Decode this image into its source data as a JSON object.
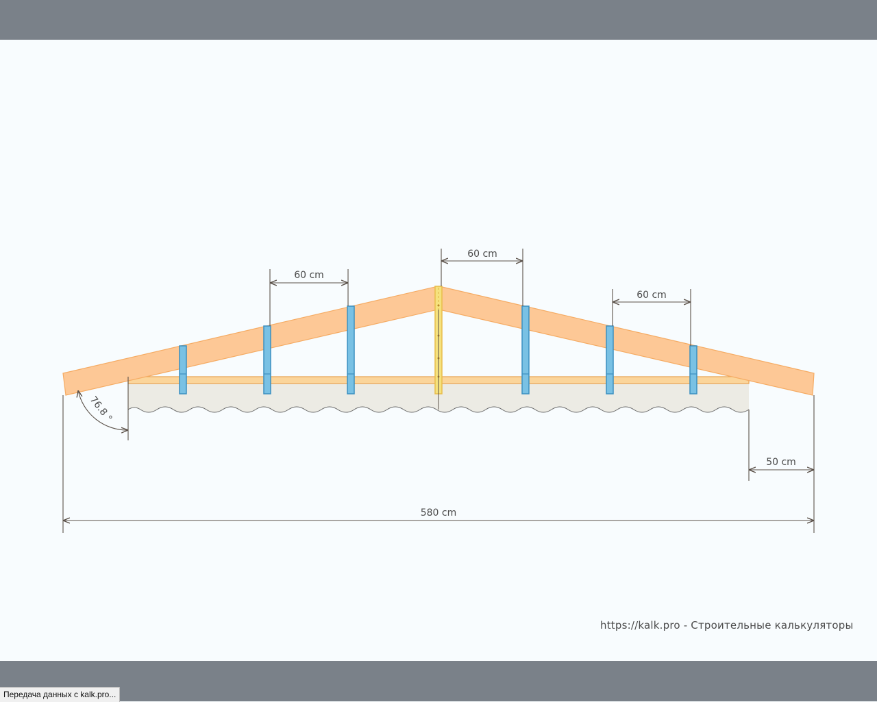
{
  "diagram": {
    "dimensions": {
      "rafter_spacing_left": "60 cm",
      "rafter_spacing_center": "60 cm",
      "rafter_spacing_right": "60 cm",
      "overhang": "50 cm",
      "total_span": "580 cm",
      "angle": "76.8 °"
    },
    "colors": {
      "rafter": "#fdc896",
      "rafter_edge": "#f5ab63",
      "post": "#79c1e4",
      "post_edge": "#3b8fc0",
      "ridge_post": "#f5e27e",
      "wall": "#ecebe4",
      "dimension_line": "#5a5048"
    }
  },
  "credit": "https://kalk.pro - Строительные калькуляторы",
  "statusbar": {
    "text": "Передача данных с kalk.pro..."
  }
}
